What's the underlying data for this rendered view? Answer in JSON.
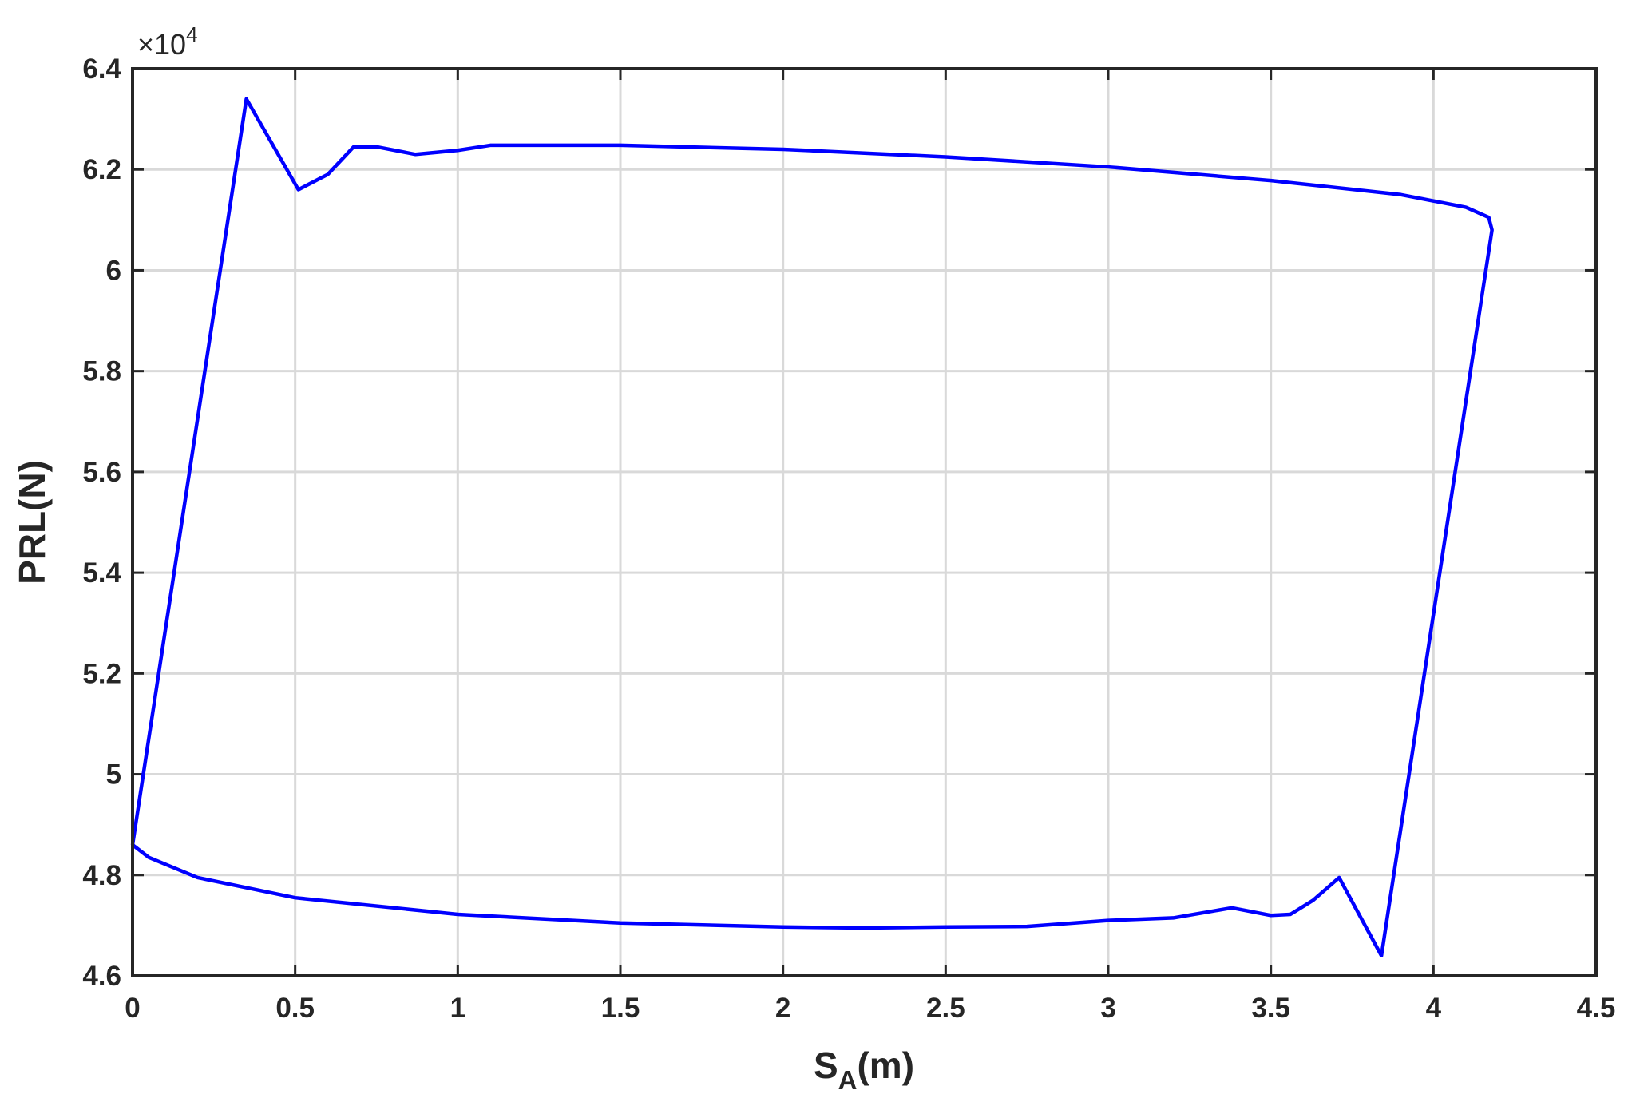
{
  "chart_data": {
    "type": "line",
    "x_label": {
      "main": "S",
      "sub": "A",
      "rest": "(m)"
    },
    "y_label": "PRL(N)",
    "y_multiplier": {
      "base": "×10",
      "exponent": "4"
    },
    "xlim": [
      0,
      4.5
    ],
    "xticks": [
      0,
      0.5,
      1,
      1.5,
      2,
      2.5,
      3,
      3.5,
      4,
      4.5
    ],
    "ylim": [
      4.6,
      6.4
    ],
    "yticks": [
      4.6,
      4.8,
      5,
      5.2,
      5.4,
      5.6,
      5.8,
      6,
      6.2,
      6.4
    ],
    "grid": true,
    "series": [
      {
        "color": "#0000ff",
        "x": [
          0,
          0.35,
          0.51,
          0.6,
          0.68,
          0.75,
          0.87,
          1.0,
          1.1,
          1.5,
          2.0,
          2.5,
          3.0,
          3.5,
          3.9,
          4.1,
          4.17,
          4.18,
          3.84,
          3.71,
          3.63,
          3.56,
          3.5,
          3.38,
          3.2,
          3.0,
          2.75,
          2.5,
          2.25,
          2.0,
          1.5,
          1.0,
          0.5,
          0.2,
          0.05,
          0
        ],
        "values": [
          4.86,
          6.34,
          6.16,
          6.19,
          6.245,
          6.245,
          6.23,
          6.238,
          6.248,
          6.248,
          6.24,
          6.225,
          6.205,
          6.178,
          6.15,
          6.125,
          6.105,
          6.08,
          4.64,
          4.795,
          4.75,
          4.722,
          4.72,
          4.735,
          4.715,
          4.71,
          4.698,
          4.697,
          4.695,
          4.697,
          4.705,
          4.722,
          4.755,
          4.795,
          4.835,
          4.86
        ]
      }
    ]
  }
}
